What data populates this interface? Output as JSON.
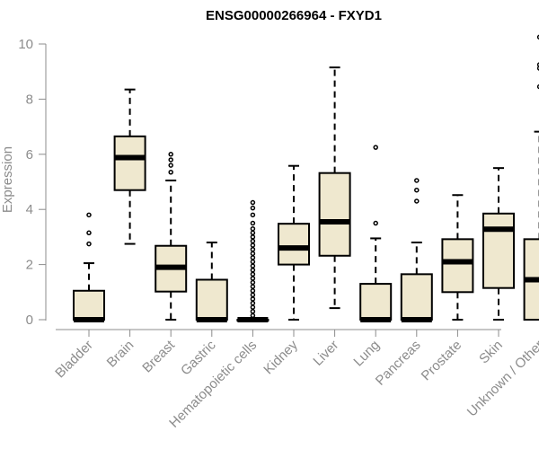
{
  "chart_data": {
    "type": "box",
    "title": "ENSG00000266964 - FXYD1",
    "xlabel": "",
    "ylabel": "Expression",
    "ylim": [
      0,
      10
    ],
    "yticks": [
      0,
      2,
      4,
      6,
      8,
      10
    ],
    "grid": false,
    "categories": [
      "Bladder",
      "Brain",
      "Breast",
      "Gastric",
      "Hematopoietic cells",
      "Kidney",
      "Liver",
      "Lung",
      "Pancreas",
      "Prostate",
      "Skin",
      "Unknown / Other"
    ],
    "boxes": [
      {
        "category": "Bladder",
        "whisker_low": 0,
        "q1": 0,
        "median": 0,
        "q3": 1.05,
        "whisker_high": 2.05,
        "outliers": [
          2.75,
          3.15,
          3.8
        ]
      },
      {
        "category": "Brain",
        "whisker_low": 2.75,
        "q1": 4.7,
        "median": 5.88,
        "q3": 6.65,
        "whisker_high": 8.35,
        "outliers": []
      },
      {
        "category": "Breast",
        "whisker_low": 0,
        "q1": 1.02,
        "median": 1.9,
        "q3": 2.68,
        "whisker_high": 5.05,
        "outliers": [
          5.35,
          5.6,
          5.8,
          6.0
        ]
      },
      {
        "category": "Gastric",
        "whisker_low": 0,
        "q1": 0,
        "median": 0,
        "q3": 1.45,
        "whisker_high": 2.8,
        "outliers": []
      },
      {
        "category": "Hematopoietic cells",
        "whisker_low": 0,
        "q1": 0,
        "median": 0,
        "q3": 0,
        "whisker_high": 0,
        "outliers": [
          0.15,
          0.3,
          0.45,
          0.6,
          0.75,
          0.9,
          1.05,
          1.2,
          1.35,
          1.5,
          1.65,
          1.8,
          1.95,
          2.1,
          2.25,
          2.4,
          2.55,
          2.7,
          2.85,
          3.0,
          3.15,
          3.3,
          3.5,
          3.8,
          4.05,
          4.25
        ]
      },
      {
        "category": "Kidney",
        "whisker_low": 0,
        "q1": 2.0,
        "median": 2.6,
        "q3": 3.48,
        "whisker_high": 5.58,
        "outliers": []
      },
      {
        "category": "Liver",
        "whisker_low": 0.42,
        "q1": 2.32,
        "median": 3.55,
        "q3": 5.32,
        "whisker_high": 9.15,
        "outliers": []
      },
      {
        "category": "Lung",
        "whisker_low": 0,
        "q1": 0,
        "median": 0,
        "q3": 1.3,
        "whisker_high": 2.95,
        "outliers": [
          3.5,
          6.25
        ]
      },
      {
        "category": "Pancreas",
        "whisker_low": 0,
        "q1": 0,
        "median": 0,
        "q3": 1.65,
        "whisker_high": 2.8,
        "outliers": [
          4.3,
          4.7,
          5.05
        ]
      },
      {
        "category": "Prostate",
        "whisker_low": 0,
        "q1": 1.0,
        "median": 2.1,
        "q3": 2.92,
        "whisker_high": 4.52,
        "outliers": []
      },
      {
        "category": "Skin",
        "whisker_low": 0,
        "q1": 1.15,
        "median": 3.28,
        "q3": 3.85,
        "whisker_high": 5.5,
        "outliers": []
      },
      {
        "category": "Unknown / Other",
        "whisker_low": 0,
        "q1": 0,
        "median": 1.45,
        "q3": 2.92,
        "whisker_high": 6.82,
        "outliers": [
          8.45,
          9.12,
          9.25,
          10.25
        ]
      }
    ],
    "colors": {
      "box_fill": "#efe8cf",
      "box_stroke": "#000000",
      "median": "#000000",
      "axis": "#8c8c8c",
      "text": "#8c8c8c"
    }
  }
}
